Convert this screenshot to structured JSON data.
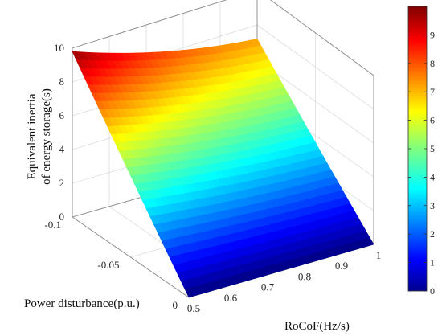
{
  "chart_data": {
    "type": "surface",
    "title": "",
    "xlabel": "RoCoF(Hz/s)",
    "ylabel": "Power disturbance(p.u.)",
    "zlabel_lines": [
      "Equivalent inertia",
      "of energy storage(s)"
    ],
    "x_ticks": [
      "0.5",
      "0.6",
      "0.7",
      "0.8",
      "0.9",
      "1"
    ],
    "y_ticks": [
      "0",
      "-0.05",
      "-0.1"
    ],
    "z_ticks": [
      "0",
      "2",
      "4",
      "6",
      "8",
      "10"
    ],
    "xlim": [
      0.5,
      1.0
    ],
    "ylim": [
      -0.1,
      0
    ],
    "zlim": [
      0,
      10
    ],
    "corner_values": [
      {
        "x": 0.5,
        "y": -0.1,
        "z": 9.8
      },
      {
        "x": 1.0,
        "y": -0.1,
        "z": 7.2
      },
      {
        "x": 0.5,
        "y": 0,
        "z": 0
      },
      {
        "x": 1.0,
        "y": 0,
        "z": 0
      }
    ],
    "colorbar": {
      "ticks": [
        "0",
        "1",
        "2",
        "3",
        "4",
        "5",
        "6",
        "7",
        "8",
        "9"
      ],
      "range": [
        0,
        10
      ],
      "colormap": "jet"
    },
    "grid": true
  }
}
